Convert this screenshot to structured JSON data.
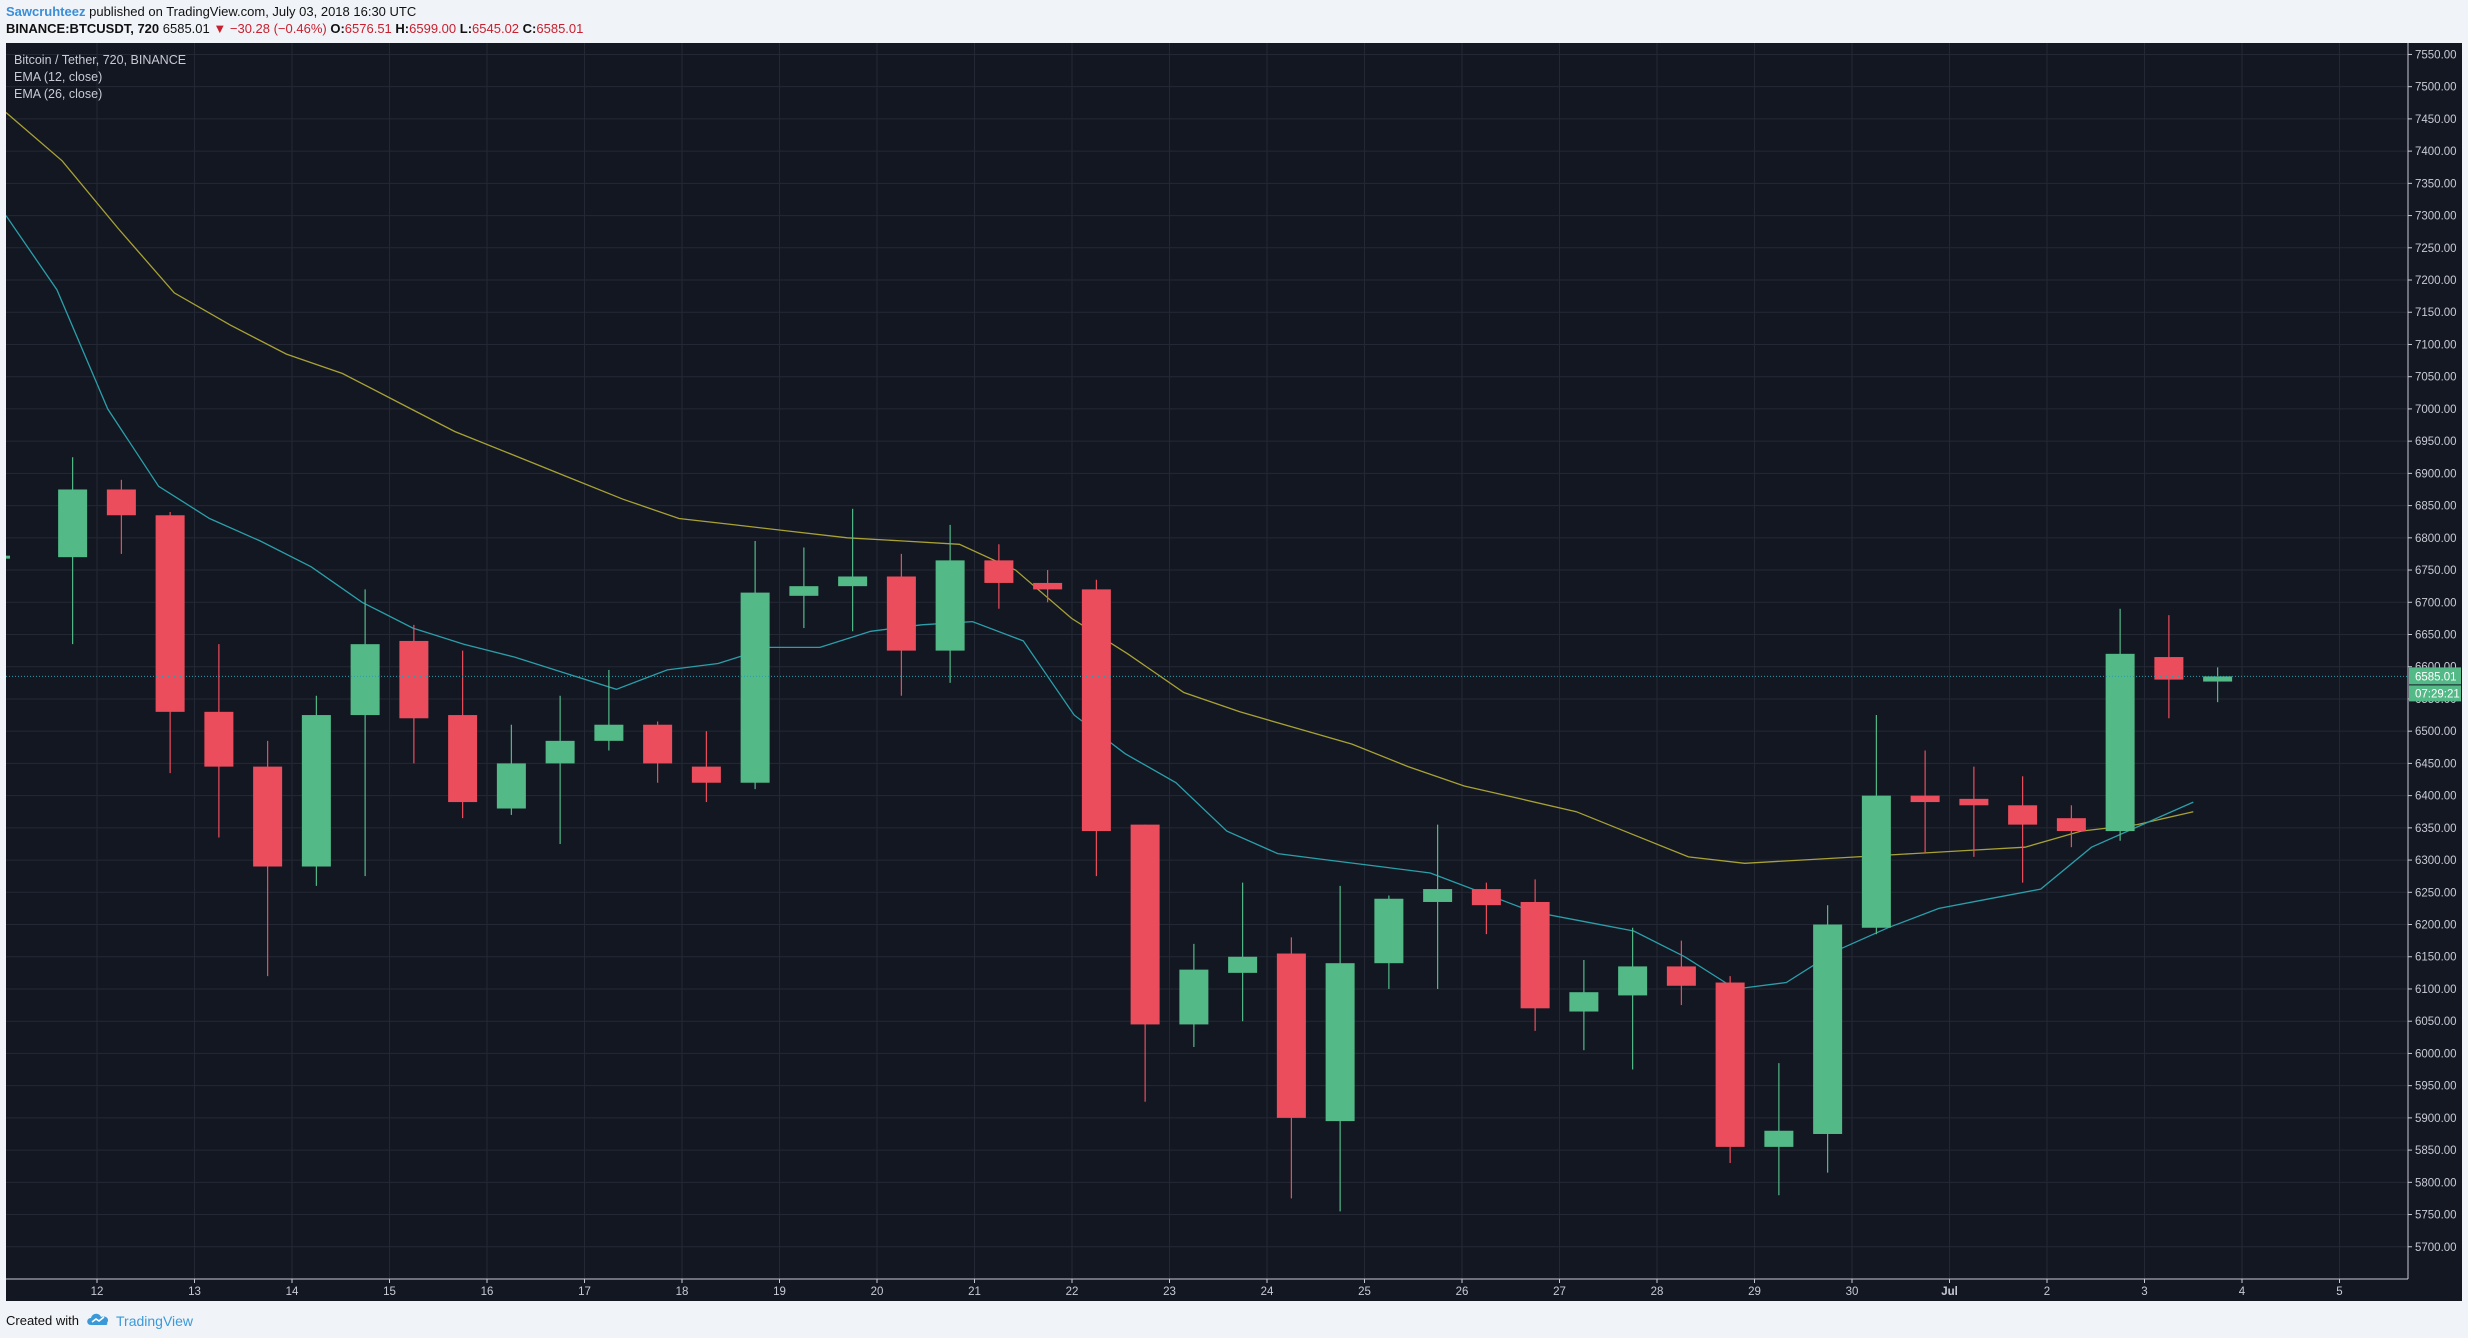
{
  "header": {
    "author": "Sawcruhteez",
    "published_text": "published on TradingView.com, July 03, 2018 16:30 UTC",
    "symbol_line": "BINANCE:BTCUSDT, 720",
    "last_price": "6585.01",
    "change": "▼ −30.28 (−0.46%)",
    "o_label": "O:",
    "o_value": "6576.51",
    "h_label": "H:",
    "h_value": "6599.00",
    "l_label": "L:",
    "l_value": "6545.02",
    "c_label": "C:",
    "c_value": "6585.01"
  },
  "legend": {
    "title": "Bitcoin / Tether, 720, BINANCE",
    "ema12": "EMA (12, close)",
    "ema26": "EMA (26, close)"
  },
  "footer": {
    "created_with": "Created with",
    "brand": "TradingView"
  },
  "colors": {
    "background": "#131722",
    "up": "#53b987",
    "down": "#eb4d5c",
    "ema12": "#2a9faa",
    "ema26": "#a8a234",
    "grid": "#242834",
    "axis_text": "#c8cbd4"
  },
  "chart_data": {
    "type": "candlestick",
    "interval": "720",
    "ylim": [
      5650,
      7560
    ],
    "y_ticks": [
      5700,
      5750,
      5800,
      5850,
      5900,
      5950,
      6000,
      6050,
      6100,
      6150,
      6200,
      6250,
      6300,
      6350,
      6400,
      6450,
      6500,
      6550,
      6600,
      6650,
      6700,
      6750,
      6800,
      6850,
      6900,
      6950,
      7000,
      7050,
      7100,
      7150,
      7200,
      7250,
      7300,
      7350,
      7400,
      7450,
      7500,
      7550
    ],
    "x_tick_labels": [
      "12",
      "13",
      "14",
      "15",
      "16",
      "17",
      "18",
      "19",
      "20",
      "21",
      "22",
      "23",
      "24",
      "25",
      "26",
      "27",
      "28",
      "29",
      "30",
      "Jul",
      "2",
      "3",
      "4",
      "5"
    ],
    "price_label": "6585.01",
    "countdown_label": "07:29:21",
    "candles": [
      {
        "o": 6770,
        "h": 6925,
        "l": 6635,
        "c": 6875
      },
      {
        "o": 6875,
        "h": 6890,
        "l": 6775,
        "c": 6835
      },
      {
        "o": 6835,
        "h": 6840,
        "l": 6435,
        "c": 6530
      },
      {
        "o": 6530,
        "h": 6635,
        "l": 6335,
        "c": 6445
      },
      {
        "o": 6445,
        "h": 6485,
        "l": 6120,
        "c": 6290
      },
      {
        "o": 6290,
        "h": 6555,
        "l": 6260,
        "c": 6525
      },
      {
        "o": 6525,
        "h": 6720,
        "l": 6275,
        "c": 6635
      },
      {
        "o": 6640,
        "h": 6665,
        "l": 6450,
        "c": 6520
      },
      {
        "o": 6525,
        "h": 6625,
        "l": 6365,
        "c": 6390
      },
      {
        "o": 6380,
        "h": 6510,
        "l": 6370,
        "c": 6450
      },
      {
        "o": 6450,
        "h": 6555,
        "l": 6325,
        "c": 6485
      },
      {
        "o": 6485,
        "h": 6595,
        "l": 6470,
        "c": 6510
      },
      {
        "o": 6510,
        "h": 6515,
        "l": 6420,
        "c": 6450
      },
      {
        "o": 6445,
        "h": 6500,
        "l": 6390,
        "c": 6420
      },
      {
        "o": 6420,
        "h": 6795,
        "l": 6410,
        "c": 6715
      },
      {
        "o": 6710,
        "h": 6785,
        "l": 6660,
        "c": 6725
      },
      {
        "o": 6725,
        "h": 6845,
        "l": 6655,
        "c": 6740
      },
      {
        "o": 6740,
        "h": 6775,
        "l": 6555,
        "c": 6625
      },
      {
        "o": 6625,
        "h": 6820,
        "l": 6575,
        "c": 6765
      },
      {
        "o": 6765,
        "h": 6790,
        "l": 6690,
        "c": 6730
      },
      {
        "o": 6730,
        "h": 6750,
        "l": 6700,
        "c": 6720
      },
      {
        "o": 6720,
        "h": 6735,
        "l": 6275,
        "c": 6345
      },
      {
        "o": 6355,
        "h": 6355,
        "l": 5925,
        "c": 6045
      },
      {
        "o": 6045,
        "h": 6170,
        "l": 6010,
        "c": 6130
      },
      {
        "o": 6125,
        "h": 6265,
        "l": 6050,
        "c": 6150
      },
      {
        "o": 6155,
        "h": 6180,
        "l": 5775,
        "c": 5900
      },
      {
        "o": 5895,
        "h": 6260,
        "l": 5755,
        "c": 6140
      },
      {
        "o": 6140,
        "h": 6245,
        "l": 6100,
        "c": 6240
      },
      {
        "o": 6235,
        "h": 6355,
        "l": 6100,
        "c": 6255
      },
      {
        "o": 6255,
        "h": 6265,
        "l": 6185,
        "c": 6230
      },
      {
        "o": 6235,
        "h": 6270,
        "l": 6035,
        "c": 6070
      },
      {
        "o": 6065,
        "h": 6145,
        "l": 6005,
        "c": 6095
      },
      {
        "o": 6090,
        "h": 6195,
        "l": 5975,
        "c": 6135
      },
      {
        "o": 6135,
        "h": 6175,
        "l": 6075,
        "c": 6105
      },
      {
        "o": 6110,
        "h": 6120,
        "l": 5830,
        "c": 5855
      },
      {
        "o": 5855,
        "h": 5985,
        "l": 5780,
        "c": 5880
      },
      {
        "o": 5875,
        "h": 6230,
        "l": 5815,
        "c": 6200
      },
      {
        "o": 6195,
        "h": 6525,
        "l": 6185,
        "c": 6400
      },
      {
        "o": 6400,
        "h": 6470,
        "l": 6310,
        "c": 6390
      },
      {
        "o": 6395,
        "h": 6445,
        "l": 6305,
        "c": 6385
      },
      {
        "o": 6385,
        "h": 6430,
        "l": 6265,
        "c": 6355
      },
      {
        "o": 6365,
        "h": 6385,
        "l": 6320,
        "c": 6345
      },
      {
        "o": 6345,
        "h": 6690,
        "l": 6330,
        "c": 6620
      },
      {
        "o": 6615,
        "h": 6680,
        "l": 6520,
        "c": 6580
      },
      {
        "o": 6577,
        "h": 6599,
        "l": 6545,
        "c": 6585
      }
    ],
    "ema12": [
      7300,
      7185,
      7000,
      6880,
      6830,
      6795,
      6755,
      6700,
      6660,
      6635,
      6615,
      6590,
      6565,
      6595,
      6605,
      6630,
      6630,
      6655,
      6665,
      6670,
      6640,
      6525,
      6465,
      6420,
      6345,
      6310,
      6300,
      6290,
      6280,
      6250,
      6220,
      6205,
      6190,
      6150,
      6100,
      6110,
      6160,
      6195,
      6225,
      6240,
      6255,
      6320,
      6355,
      6390
    ],
    "ema26": [
      7460,
      7385,
      7280,
      7180,
      7130,
      7085,
      7055,
      7010,
      6965,
      6930,
      6895,
      6860,
      6830,
      6820,
      6810,
      6800,
      6795,
      6790,
      6750,
      6675,
      6620,
      6560,
      6530,
      6505,
      6480,
      6445,
      6415,
      6395,
      6375,
      6340,
      6305,
      6295,
      6300,
      6305,
      6310,
      6315,
      6320,
      6345,
      6355,
      6375
    ]
  }
}
